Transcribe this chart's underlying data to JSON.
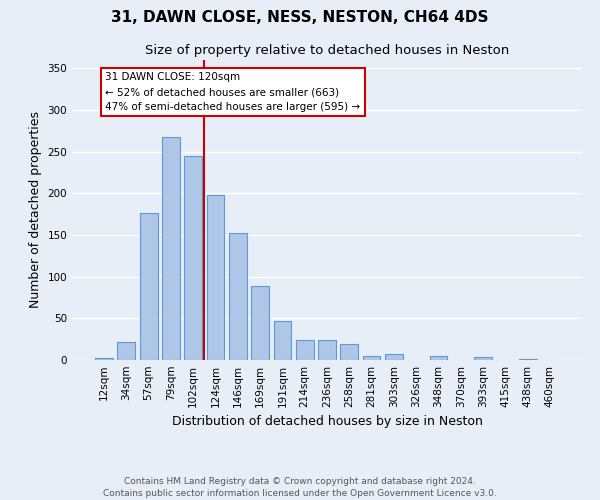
{
  "title": "31, DAWN CLOSE, NESS, NESTON, CH64 4DS",
  "subtitle": "Size of property relative to detached houses in Neston",
  "xlabel": "Distribution of detached houses by size in Neston",
  "ylabel": "Number of detached properties",
  "categories": [
    "12sqm",
    "34sqm",
    "57sqm",
    "79sqm",
    "102sqm",
    "124sqm",
    "146sqm",
    "169sqm",
    "191sqm",
    "214sqm",
    "236sqm",
    "258sqm",
    "281sqm",
    "303sqm",
    "326sqm",
    "348sqm",
    "370sqm",
    "393sqm",
    "415sqm",
    "438sqm",
    "460sqm"
  ],
  "values": [
    2,
    22,
    177,
    268,
    245,
    198,
    152,
    89,
    47,
    24,
    24,
    19,
    5,
    7,
    0,
    5,
    0,
    4,
    0,
    1,
    0
  ],
  "bar_color": "#aec6e8",
  "bar_edge_color": "#5b9bd5",
  "background_color": "#e8eef7",
  "grid_color": "#ffffff",
  "annotation_line_color": "#cc0000",
  "annotation_box_text": "31 DAWN CLOSE: 120sqm\n← 52% of detached houses are smaller (663)\n47% of semi-detached houses are larger (595) →",
  "ylim": [
    0,
    360
  ],
  "yticks": [
    0,
    50,
    100,
    150,
    200,
    250,
    300,
    350
  ],
  "footer_text": "Contains HM Land Registry data © Crown copyright and database right 2024.\nContains public sector information licensed under the Open Government Licence v3.0.",
  "title_fontsize": 11,
  "subtitle_fontsize": 9.5,
  "xlabel_fontsize": 9,
  "ylabel_fontsize": 9,
  "tick_fontsize": 7.5,
  "footer_fontsize": 6.5
}
